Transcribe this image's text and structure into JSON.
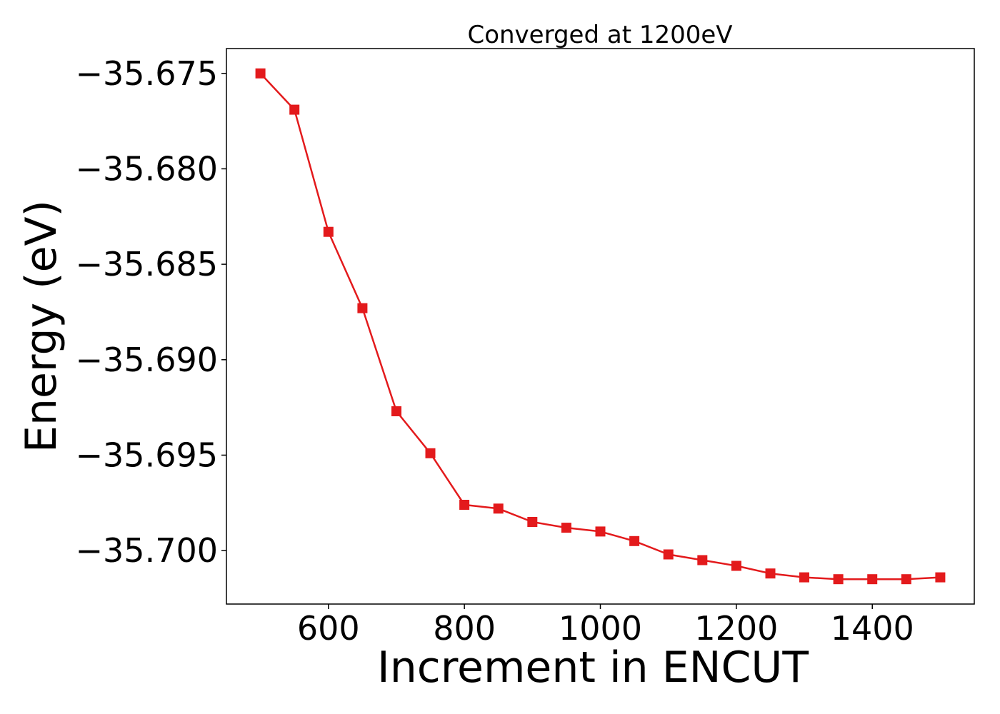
{
  "chart_data": {
    "type": "line",
    "title": "Converged at 1200eV",
    "xlabel": "Increment in ENCUT",
    "ylabel": "Energy (eV)",
    "xlim": [
      450,
      1550
    ],
    "ylim": [
      -35.7028,
      -35.6737
    ],
    "xticks": [
      600,
      800,
      1000,
      1200,
      1400
    ],
    "xtick_labels": [
      "600",
      "800",
      "1000",
      "1200",
      "1400"
    ],
    "yticks": [
      -35.675,
      -35.68,
      -35.685,
      -35.69,
      -35.695,
      -35.7
    ],
    "ytick_labels": [
      "−35.675",
      "−35.680",
      "−35.685",
      "−35.690",
      "−35.695",
      "−35.700"
    ],
    "grid": false,
    "legend": "none",
    "series": [
      {
        "color": "#e31a1c",
        "marker": "square",
        "x": [
          500,
          550,
          600,
          650,
          700,
          750,
          800,
          850,
          900,
          950,
          1000,
          1050,
          1100,
          1150,
          1200,
          1250,
          1300,
          1350,
          1400,
          1450,
          1500
        ],
        "y": [
          -35.675,
          -35.6769,
          -35.6833,
          -35.6873,
          -35.6927,
          -35.6949,
          -35.6976,
          -35.6978,
          -35.6985,
          -35.6988,
          -35.699,
          -35.6995,
          -35.7002,
          -35.7005,
          -35.7008,
          -35.7012,
          -35.7014,
          -35.7015,
          -35.7015,
          -35.7015,
          -35.7014
        ]
      }
    ]
  }
}
